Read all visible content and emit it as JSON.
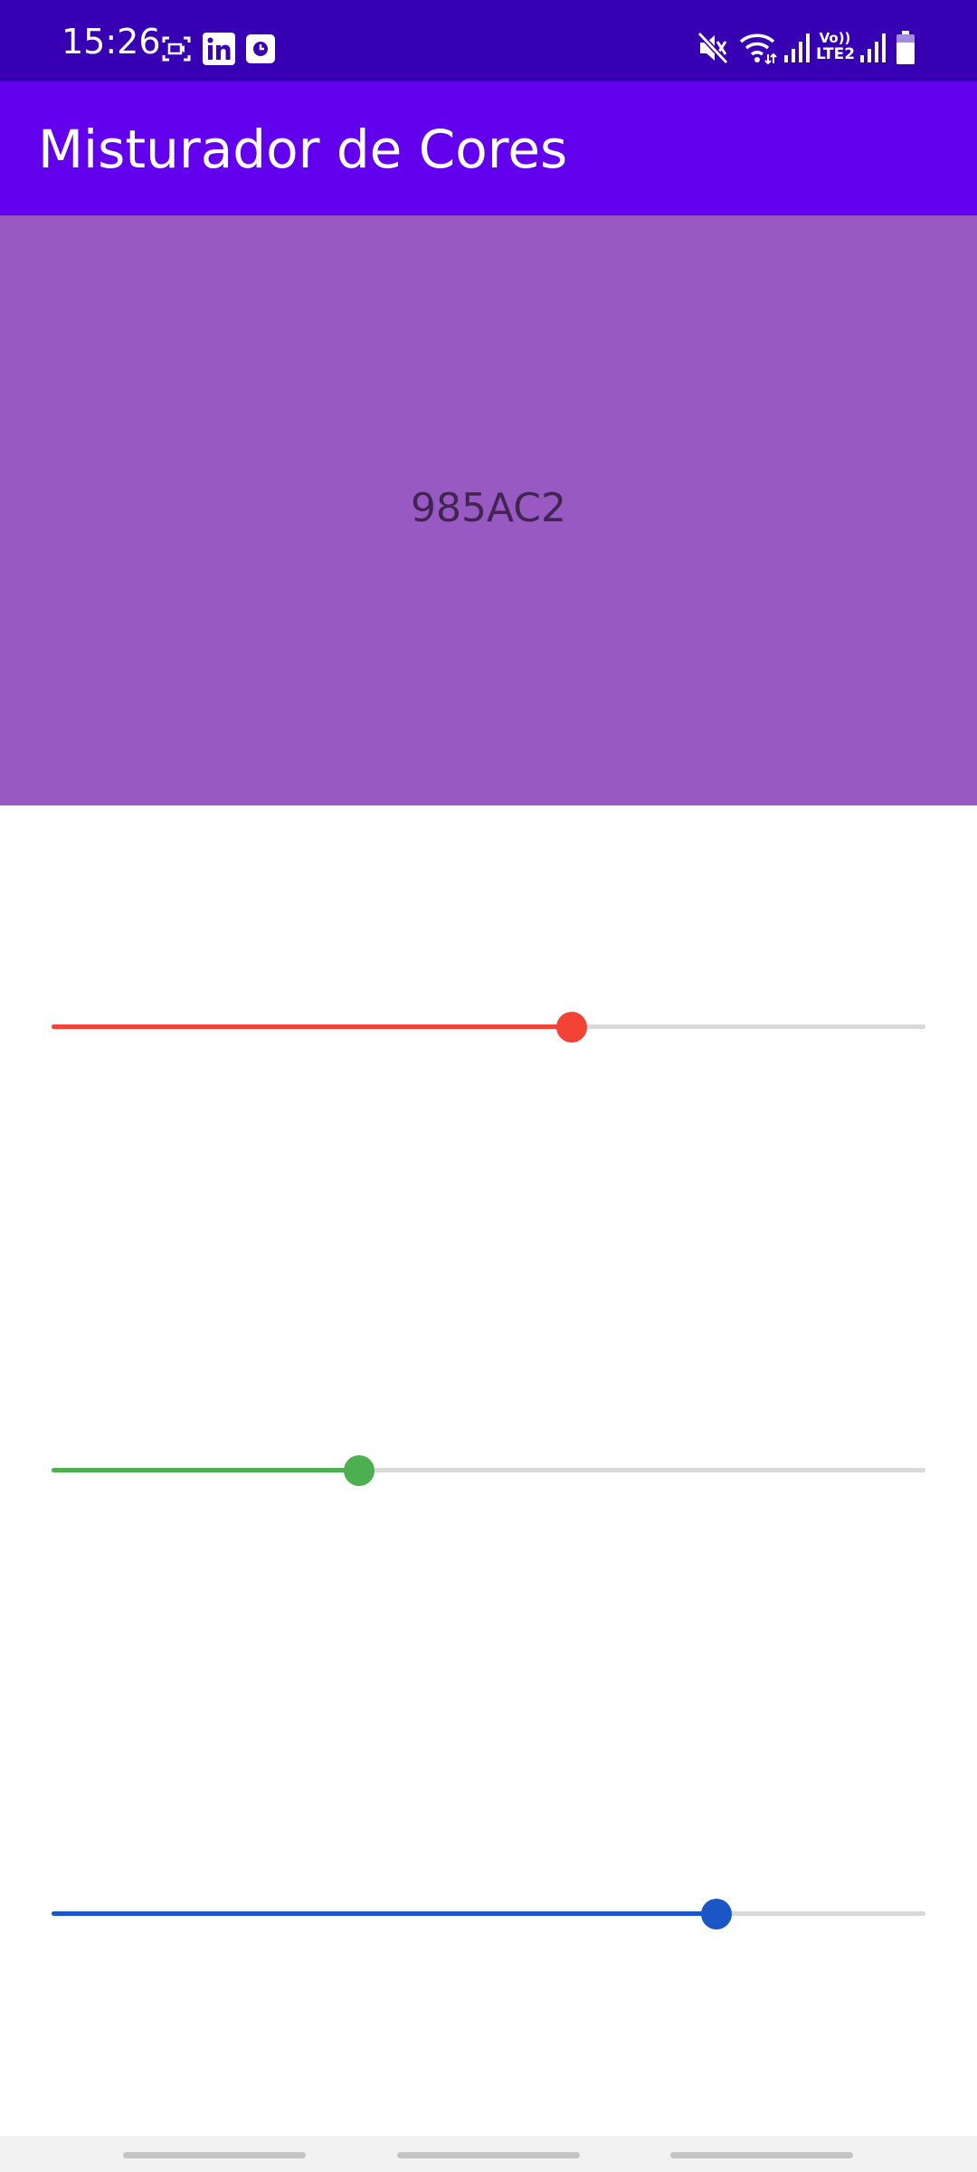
{
  "status_bar": {
    "time": "15:26",
    "left_icons": [
      "screen-recorder-icon",
      "linkedin-icon",
      "clock-app-icon"
    ],
    "right_icons": [
      "mute-icon",
      "wifi-icon",
      "signal-icon-1",
      "volte-icon",
      "signal-icon-2",
      "battery-icon"
    ],
    "volte_label_top": "Vo))",
    "volte_label_bottom": "LTE2"
  },
  "app_bar": {
    "title": "Misturador de Cores",
    "color": "#6200ee"
  },
  "preview": {
    "hex_label": "985AC2",
    "color": "#985ac2"
  },
  "sliders": [
    {
      "name": "red",
      "color": "#f44336",
      "fraction": 0.595
    },
    {
      "name": "green",
      "color": "#4caf50",
      "fraction": 0.352
    },
    {
      "name": "blue",
      "color": "#1a56c6",
      "fraction": 0.761
    }
  ],
  "nav_bar": {
    "pills": [
      "recent-apps",
      "home",
      "back"
    ]
  }
}
